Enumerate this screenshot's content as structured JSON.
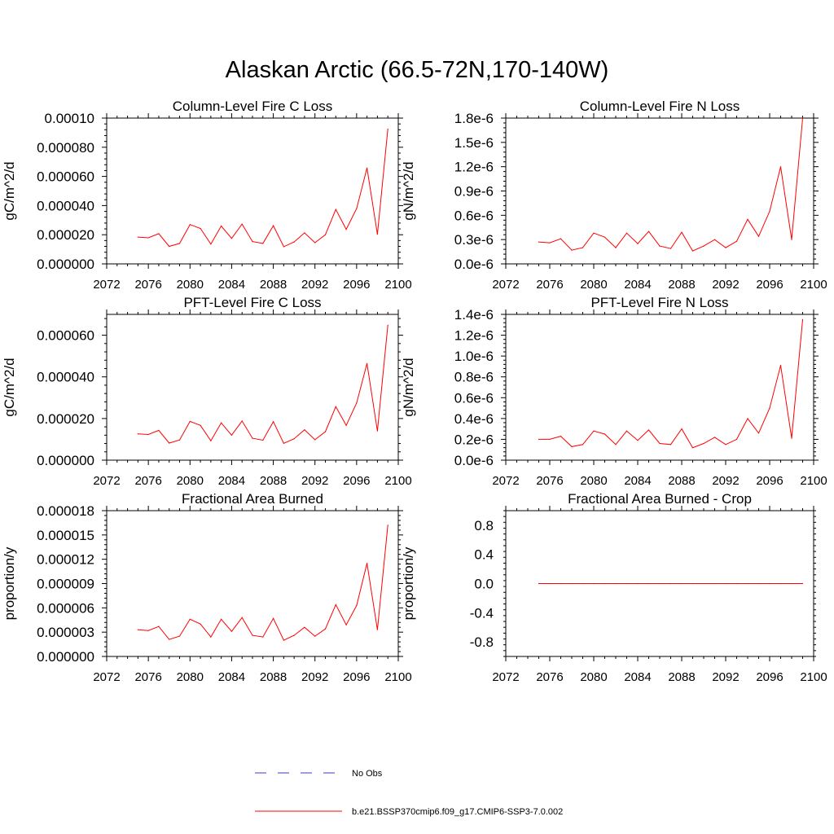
{
  "figure": {
    "title": "Alaskan Arctic (66.5-72N,170-140W)"
  },
  "legend": {
    "items": [
      {
        "label": "No Obs",
        "color": "#3c3cbe",
        "style": "dashed"
      },
      {
        "label": "b.e21.BSSP370cmip6.f09_g17.CMIP6-SSP3-7.0.002",
        "color": "#ff0000",
        "style": "solid"
      }
    ]
  },
  "chart_data": [
    {
      "type": "line",
      "title": "Column-Level Fire C Loss",
      "xlabel": "",
      "ylabel": "gC/m^2/d",
      "xlim": [
        2072,
        2100
      ],
      "ylim": [
        0,
        0.0001
      ],
      "x_ticks": [
        2072,
        2076,
        2080,
        2084,
        2088,
        2092,
        2096,
        2100
      ],
      "y_ticks": [
        0,
        2e-05,
        4e-05,
        6e-05,
        8e-05,
        0.0001
      ],
      "y_tick_labels": [
        "0.000000",
        "0.000020",
        "0.000040",
        "0.000060",
        "0.000080",
        "0.00010"
      ],
      "x": [
        2075,
        2076,
        2077,
        2078,
        2079,
        2080,
        2081,
        2082,
        2083,
        2084,
        2085,
        2086,
        2087,
        2088,
        2089,
        2090,
        2091,
        2092,
        2093,
        2094,
        2095,
        2096,
        2097,
        2098,
        2099
      ],
      "series": [
        {
          "name": "b.e21.BSSP370cmip6.f09_g17.CMIP6-SSP3-7.0.002",
          "color": "#ff0000",
          "values": [
            1.84e-05,
            1.79e-05,
            2.07e-05,
            1.2e-05,
            1.4e-05,
            2.7e-05,
            2.43e-05,
            1.36e-05,
            2.6e-05,
            1.75e-05,
            2.73e-05,
            1.53e-05,
            1.4e-05,
            2.62e-05,
            1.18e-05,
            1.5e-05,
            2.13e-05,
            1.45e-05,
            2e-05,
            3.73e-05,
            2.37e-05,
            3.8e-05,
            6.58e-05,
            2.03e-05,
            9.25e-05
          ]
        }
      ]
    },
    {
      "type": "line",
      "title": "Column-Level Fire N Loss",
      "xlabel": "",
      "ylabel": "gN/m^2/d",
      "xlim": [
        2072,
        2100
      ],
      "ylim": [
        0,
        1.8e-06
      ],
      "x_ticks": [
        2072,
        2076,
        2080,
        2084,
        2088,
        2092,
        2096,
        2100
      ],
      "y_ticks": [
        0,
        3e-07,
        6e-07,
        9e-07,
        1.2e-06,
        1.5e-06,
        1.8e-06
      ],
      "y_tick_labels": [
        "0.0e-6",
        "0.3e-6",
        "0.6e-6",
        "0.9e-6",
        "1.2e-6",
        "1.5e-6",
        "1.8e-6"
      ],
      "x": [
        2075,
        2076,
        2077,
        2078,
        2079,
        2080,
        2081,
        2082,
        2083,
        2084,
        2085,
        2086,
        2087,
        2088,
        2089,
        2090,
        2091,
        2092,
        2093,
        2094,
        2095,
        2096,
        2097,
        2098,
        2099
      ],
      "series": [
        {
          "name": "b.e21.BSSP370cmip6.f09_g17.CMIP6-SSP3-7.0.002",
          "color": "#ff0000",
          "values": [
            2.7e-07,
            2.6e-07,
            3.1e-07,
            1.7e-07,
            2e-07,
            3.8e-07,
            3.3e-07,
            2e-07,
            3.8e-07,
            2.5e-07,
            4e-07,
            2.2e-07,
            1.9e-07,
            3.9e-07,
            1.6e-07,
            2.2e-07,
            3e-07,
            2e-07,
            2.8e-07,
            5.5e-07,
            3.4e-07,
            6.5e-07,
            1.2e-06,
            3e-07,
            1.8e-06
          ]
        }
      ]
    },
    {
      "type": "line",
      "title": "PFT-Level Fire C Loss",
      "xlabel": "",
      "ylabel": "gC/m^2/d",
      "xlim": [
        2072,
        2100
      ],
      "ylim": [
        0,
        7e-05
      ],
      "x_ticks": [
        2072,
        2076,
        2080,
        2084,
        2088,
        2092,
        2096,
        2100
      ],
      "y_ticks": [
        0,
        2e-05,
        4e-05,
        6e-05
      ],
      "y_tick_labels": [
        "0.000000",
        "0.000020",
        "0.000040",
        "0.000060"
      ],
      "x": [
        2075,
        2076,
        2077,
        2078,
        2079,
        2080,
        2081,
        2082,
        2083,
        2084,
        2085,
        2086,
        2087,
        2088,
        2089,
        2090,
        2091,
        2092,
        2093,
        2094,
        2095,
        2096,
        2097,
        2098,
        2099
      ],
      "series": [
        {
          "name": "b.e21.BSSP370cmip6.f09_g17.CMIP6-SSP3-7.0.002",
          "color": "#ff0000",
          "values": [
            1.26e-05,
            1.23e-05,
            1.43e-05,
            8.2e-06,
            9.7e-06,
            1.86e-05,
            1.67e-05,
            9.3e-06,
            1.79e-05,
            1.2e-05,
            1.88e-05,
            1.05e-05,
            9.6e-06,
            1.85e-05,
            8.1e-06,
            1.03e-05,
            1.46e-05,
            9.8e-06,
            1.37e-05,
            2.57e-05,
            1.67e-05,
            2.75e-05,
            4.64e-05,
            1.4e-05,
            6.48e-05
          ]
        }
      ]
    },
    {
      "type": "line",
      "title": "PFT-Level Fire N Loss",
      "xlabel": "",
      "ylabel": "gN/m^2/d",
      "xlim": [
        2072,
        2100
      ],
      "ylim": [
        0,
        1.4e-06
      ],
      "x_ticks": [
        2072,
        2076,
        2080,
        2084,
        2088,
        2092,
        2096,
        2100
      ],
      "y_ticks": [
        0,
        2e-07,
        4e-07,
        6e-07,
        8e-07,
        1e-06,
        1.2e-06,
        1.4e-06
      ],
      "y_tick_labels": [
        "0.0e-6",
        "0.2e-6",
        "0.4e-6",
        "0.6e-6",
        "0.8e-6",
        "1.0e-6",
        "1.2e-6",
        "1.4e-6"
      ],
      "x": [
        2075,
        2076,
        2077,
        2078,
        2079,
        2080,
        2081,
        2082,
        2083,
        2084,
        2085,
        2086,
        2087,
        2088,
        2089,
        2090,
        2091,
        2092,
        2093,
        2094,
        2095,
        2096,
        2097,
        2098,
        2099
      ],
      "series": [
        {
          "name": "b.e21.BSSP370cmip6.f09_g17.CMIP6-SSP3-7.0.002",
          "color": "#ff0000",
          "values": [
            2e-07,
            2e-07,
            2.3e-07,
            1.3e-07,
            1.5e-07,
            2.8e-07,
            2.5e-07,
            1.5e-07,
            2.8e-07,
            1.9e-07,
            2.9e-07,
            1.6e-07,
            1.5e-07,
            3e-07,
            1.2e-07,
            1.6e-07,
            2.2e-07,
            1.5e-07,
            2e-07,
            4e-07,
            2.6e-07,
            5e-07,
            9.1e-07,
            2.1e-07,
            1.35e-06
          ]
        }
      ]
    },
    {
      "type": "line",
      "title": "Fractional Area Burned",
      "xlabel": "",
      "ylabel": "proportion/y",
      "xlim": [
        2072,
        2100
      ],
      "ylim": [
        0,
        1.8e-05
      ],
      "x_ticks": [
        2072,
        2076,
        2080,
        2084,
        2088,
        2092,
        2096,
        2100
      ],
      "y_ticks": [
        0,
        3e-06,
        6e-06,
        9e-06,
        1.2e-05,
        1.5e-05,
        1.8e-05
      ],
      "y_tick_labels": [
        "0.000000",
        "0.000003",
        "0.000006",
        "0.000009",
        "0.000012",
        "0.000015",
        "0.000018"
      ],
      "x": [
        2075,
        2076,
        2077,
        2078,
        2079,
        2080,
        2081,
        2082,
        2083,
        2084,
        2085,
        2086,
        2087,
        2088,
        2089,
        2090,
        2091,
        2092,
        2093,
        2094,
        2095,
        2096,
        2097,
        2098,
        2099
      ],
      "series": [
        {
          "name": "b.e21.BSSP370cmip6.f09_g17.CMIP6-SSP3-7.0.002",
          "color": "#ff0000",
          "values": [
            3.3e-06,
            3.2e-06,
            3.7e-06,
            2.1e-06,
            2.5e-06,
            4.6e-06,
            4e-06,
            2.4e-06,
            4.6e-06,
            3.1e-06,
            4.8e-06,
            2.6e-06,
            2.4e-06,
            4.7e-06,
            2e-06,
            2.6e-06,
            3.6e-06,
            2.5e-06,
            3.4e-06,
            6.4e-06,
            3.9e-06,
            6.3e-06,
            1.15e-05,
            3.3e-06,
            1.62e-05
          ]
        }
      ]
    },
    {
      "type": "line",
      "title": "Fractional Area Burned - Crop",
      "xlabel": "",
      "ylabel": "proportion/y",
      "xlim": [
        2072,
        2100
      ],
      "ylim": [
        -1,
        1
      ],
      "x_ticks": [
        2072,
        2076,
        2080,
        2084,
        2088,
        2092,
        2096,
        2100
      ],
      "y_ticks": [
        -0.8,
        -0.4,
        0,
        0.4,
        0.8
      ],
      "y_tick_labels": [
        "-0.8",
        "-0.4",
        "0.0",
        "0.4",
        "0.8"
      ],
      "x": [
        2075,
        2076,
        2077,
        2078,
        2079,
        2080,
        2081,
        2082,
        2083,
        2084,
        2085,
        2086,
        2087,
        2088,
        2089,
        2090,
        2091,
        2092,
        2093,
        2094,
        2095,
        2096,
        2097,
        2098,
        2099
      ],
      "series": [
        {
          "name": "b.e21.BSSP370cmip6.f09_g17.CMIP6-SSP3-7.0.002",
          "color": "#ff0000",
          "values": [
            0,
            0,
            0,
            0,
            0,
            0,
            0,
            0,
            0,
            0,
            0,
            0,
            0,
            0,
            0,
            0,
            0,
            0,
            0,
            0,
            0,
            0,
            0,
            0,
            0
          ]
        }
      ]
    }
  ]
}
